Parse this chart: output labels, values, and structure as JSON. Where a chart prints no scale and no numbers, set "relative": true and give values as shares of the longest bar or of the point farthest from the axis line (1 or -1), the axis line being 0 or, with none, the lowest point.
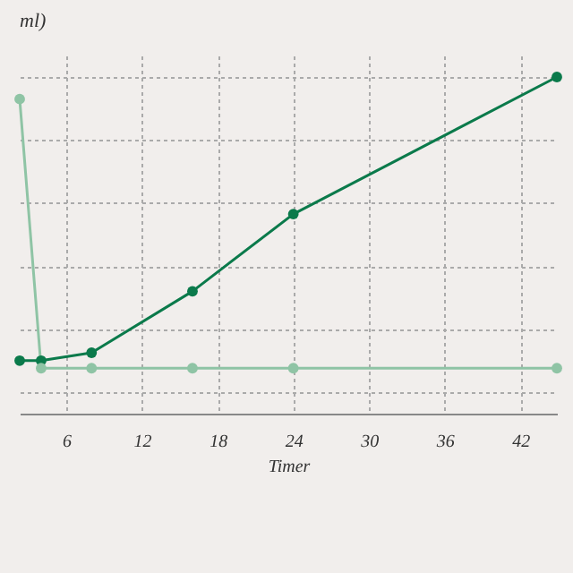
{
  "chart_data": {
    "type": "line",
    "ylabel": "ml)",
    "xlabel": "Timer",
    "x": [
      2.3,
      4,
      8,
      16,
      24,
      44.9
    ],
    "xlim": [
      2.3,
      44.9
    ],
    "xticks": [
      6,
      12,
      18,
      24,
      30,
      36,
      42
    ],
    "relative": true,
    "grid": true,
    "marker": "circle",
    "line_style": "solid",
    "series": [
      {
        "color": "#0b7a4b",
        "values": [
          0.1,
          0.1,
          0.125,
          0.32,
          0.565,
          1
        ]
      },
      {
        "color": "#8fc4a5",
        "values": [
          0.93,
          0.076,
          0.076,
          0.076,
          0.076,
          0.076
        ]
      }
    ]
  }
}
